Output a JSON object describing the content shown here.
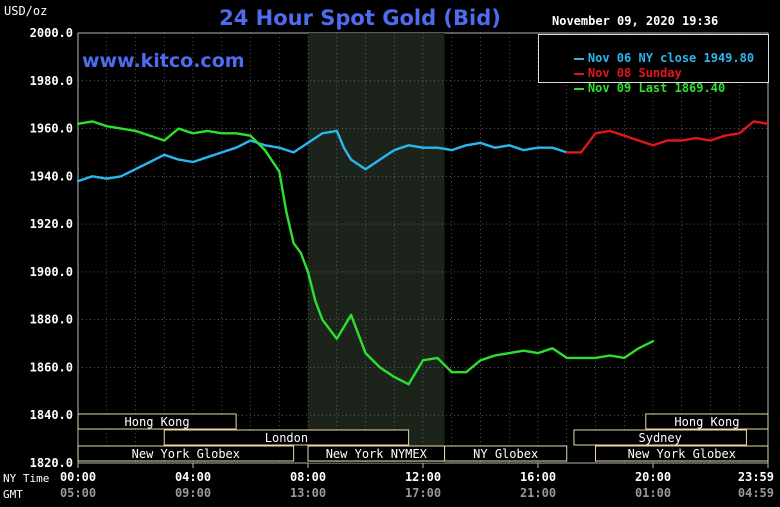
{
  "header": {
    "title": "24 Hour Spot Gold (Bid)",
    "title_color": "#4e6cf0",
    "watermark": "www.kitco.com",
    "watermark_color": "#4e6cf0",
    "unit": "USD/oz",
    "timestamp": "November 09, 2020 19:36"
  },
  "axis_rows": {
    "ny_label": "NY Time",
    "gmt_label": "GMT"
  },
  "legend": {
    "entries": [
      {
        "label": "Nov 06 NY close 1949.80",
        "color": "#2ab7f0"
      },
      {
        "label": "Nov 08 Sunday",
        "color": "#e0161b"
      },
      {
        "label": "Nov 09 Last 1869.40",
        "color": "#2ee02e"
      }
    ]
  },
  "chart_data": {
    "type": "line",
    "title": "24 Hour Spot Gold (Bid)",
    "ylabel": "USD/oz",
    "xlabel": "",
    "ylim": [
      1820,
      2000
    ],
    "xlim": [
      0,
      24
    ],
    "grid": true,
    "legend_position": "top-right",
    "y_ticks": [
      "2000.0",
      "1980.0",
      "1960.0",
      "1940.0",
      "1920.0",
      "1900.0",
      "1880.0",
      "1860.0",
      "1840.0",
      "1820.0"
    ],
    "x_ticks": [
      {
        "ny": "00:00",
        "gmt": "05:00"
      },
      {
        "ny": "04:00",
        "gmt": "09:00"
      },
      {
        "ny": "08:00",
        "gmt": "13:00"
      },
      {
        "ny": "12:00",
        "gmt": "17:00"
      },
      {
        "ny": "16:00",
        "gmt": "21:00"
      },
      {
        "ny": "20:00",
        "gmt": "01:00"
      },
      {
        "ny": "23:59",
        "gmt": "04:59"
      }
    ],
    "shaded_session": {
      "from": 8,
      "to": 12.75
    },
    "sessions": [
      {
        "name": "Hong Kong",
        "from": 0,
        "to": 5.5,
        "row": 0
      },
      {
        "name": "Hong Kong",
        "from": 19.75,
        "to": 24,
        "row": 0
      },
      {
        "name": "London",
        "from": 3,
        "to": 11.5,
        "row": 1
      },
      {
        "name": "Sydney",
        "from": 17.25,
        "to": 23.25,
        "row": 1
      },
      {
        "name": "New York Globex",
        "from": 0,
        "to": 7.5,
        "row": 2
      },
      {
        "name": "New York NYMEX",
        "from": 8,
        "to": 12.75,
        "row": 2
      },
      {
        "name": "NY Globex",
        "from": 12.75,
        "to": 17,
        "row": 2
      },
      {
        "name": "New York Globex",
        "from": 18,
        "to": 24,
        "row": 2
      }
    ],
    "series": [
      {
        "name": "Nov 06 NY close 1949.80",
        "color": "#2ab7f0",
        "x": [
          0,
          0.5,
          1,
          1.5,
          2,
          2.5,
          3,
          3.5,
          4,
          4.5,
          5,
          5.5,
          6,
          6.5,
          7,
          7.5,
          8,
          8.5,
          9,
          9.25,
          9.5,
          10,
          10.5,
          11,
          11.5,
          12,
          12.5,
          13,
          13.5,
          14,
          14.5,
          15,
          15.5,
          16,
          16.5,
          17
        ],
        "values": [
          1938,
          1940,
          1939,
          1940,
          1943,
          1946,
          1949,
          1947,
          1946,
          1948,
          1950,
          1952,
          1955,
          1953,
          1952,
          1950,
          1954,
          1958,
          1959,
          1952,
          1947,
          1943,
          1947,
          1951,
          1953,
          1952,
          1952,
          1951,
          1953,
          1954,
          1952,
          1953,
          1951,
          1952,
          1952,
          1950
        ]
      },
      {
        "name": "Nov 08 Sunday",
        "color": "#e0161b",
        "x": [
          17,
          17.5,
          18,
          18.5,
          19,
          19.5,
          20,
          20.5,
          21,
          21.5,
          22,
          22.5,
          23,
          23.5,
          24
        ],
        "values": [
          1950,
          1950,
          1958,
          1959,
          1957,
          1955,
          1953,
          1955,
          1955,
          1956,
          1955,
          1957,
          1958,
          1963,
          1962
        ]
      },
      {
        "name": "Nov 09 Last 1869.40",
        "color": "#2ee02e",
        "x": [
          0,
          0.5,
          1,
          1.5,
          2,
          2.5,
          3,
          3.5,
          4,
          4.5,
          5,
          5.5,
          6,
          6.5,
          7,
          7.25,
          7.5,
          7.75,
          8,
          8.25,
          8.5,
          9,
          9.5,
          10,
          10.5,
          11,
          11.5,
          12,
          12.5,
          13,
          13.5,
          14,
          14.5,
          15,
          15.5,
          16,
          16.5,
          17,
          17.5,
          18,
          18.5,
          19,
          19.5,
          20
        ],
        "values": [
          1962,
          1963,
          1961,
          1960,
          1959,
          1957,
          1955,
          1960,
          1958,
          1959,
          1958,
          1958,
          1957,
          1951,
          1942,
          1925,
          1912,
          1908,
          1900,
          1888,
          1880,
          1872,
          1882,
          1866,
          1860,
          1856,
          1853,
          1863,
          1864,
          1858,
          1858,
          1863,
          1865,
          1866,
          1867,
          1866,
          1868,
          1864,
          1864,
          1864,
          1865,
          1864,
          1868,
          1871
        ]
      }
    ]
  },
  "colors": {
    "background": "#000000",
    "plot_bg": "#000000",
    "shade": "#1b231b",
    "grid": "#888888",
    "session_bar": "#e8d9a6",
    "session_text": "#ffffff",
    "axis_text": "#ffffff",
    "gmt_text": "#999999"
  }
}
